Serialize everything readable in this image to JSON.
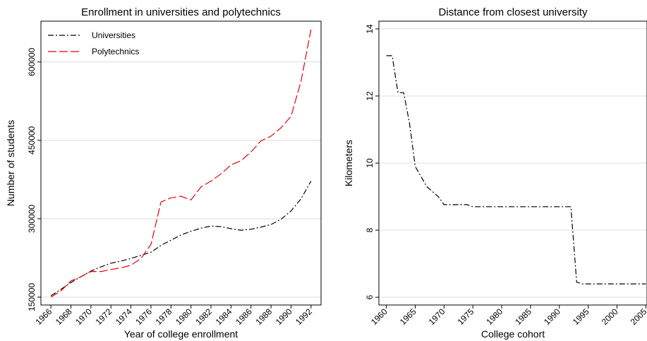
{
  "chart_data": [
    {
      "type": "line",
      "title": "Enrollment in universities and polytechnics",
      "x_label": "Year of college enrollment",
      "y_label": "Number of students",
      "x": [
        1966,
        1967,
        1968,
        1969,
        1970,
        1971,
        1972,
        1973,
        1974,
        1975,
        1976,
        1977,
        1978,
        1979,
        1980,
        1981,
        1982,
        1983,
        1984,
        1985,
        1986,
        1987,
        1988,
        1989,
        1990,
        1991,
        1992
      ],
      "series": [
        {
          "name": "Universities",
          "color": "#000000",
          "dash": "dashdot",
          "values": [
            152700,
            165000,
            178000,
            189000,
            200000,
            208000,
            215000,
            219000,
            224000,
            230000,
            236000,
            249000,
            259000,
            269000,
            276000,
            282000,
            286000,
            285000,
            281000,
            278000,
            280000,
            284000,
            289000,
            299000,
            315000,
            338000,
            372000
          ]
        },
        {
          "name": "Polytechnics",
          "color": "#e8000b",
          "dash": "dashed",
          "values": [
            150000,
            162000,
            181000,
            189000,
            199000,
            199000,
            203000,
            206000,
            211000,
            224000,
            251000,
            332000,
            340000,
            343000,
            336000,
            361000,
            372000,
            386000,
            403000,
            411000,
            428000,
            449000,
            458000,
            474000,
            496000,
            563000,
            662000
          ]
        }
      ],
      "xlim": [
        1965,
        1993
      ],
      "xticks": [
        1966,
        1968,
        1970,
        1972,
        1974,
        1976,
        1978,
        1980,
        1982,
        1984,
        1986,
        1988,
        1990,
        1992
      ],
      "ylim": [
        135000,
        678000
      ],
      "yticks": [
        150000,
        300000,
        450000,
        600000
      ],
      "grid": true,
      "legend": "top-left"
    },
    {
      "type": "line",
      "title": "Distance from closest university",
      "x_label": "College cohort",
      "y_label": "Kilometers",
      "x": [
        1960,
        1961,
        1962,
        1963,
        1964,
        1965,
        1966,
        1967,
        1968,
        1969,
        1970,
        1971,
        1972,
        1973,
        1974,
        1975,
        1976,
        1977,
        1978,
        1979,
        1980,
        1981,
        1982,
        1983,
        1984,
        1985,
        1986,
        1987,
        1988,
        1989,
        1990,
        1991,
        1992,
        1993,
        1994,
        1995,
        1996,
        1997,
        1998,
        1999,
        2000,
        2001,
        2002,
        2003,
        2004,
        2005
      ],
      "series": [
        {
          "color": "#000000",
          "dash": "dashdot",
          "values": [
            13.2,
            13.2,
            12.1,
            12.1,
            11.2,
            9.9,
            9.6,
            9.3,
            9.15,
            9.0,
            8.76,
            8.76,
            8.76,
            8.76,
            8.76,
            8.7,
            8.7,
            8.7,
            8.7,
            8.7,
            8.7,
            8.7,
            8.7,
            8.7,
            8.7,
            8.7,
            8.7,
            8.7,
            8.7,
            8.7,
            8.7,
            8.7,
            8.7,
            6.45,
            6.4,
            6.4,
            6.4,
            6.4,
            6.4,
            6.4,
            6.4,
            6.4,
            6.4,
            6.4,
            6.4,
            6.4
          ]
        }
      ],
      "xlim": [
        1958.7,
        2005.2
      ],
      "xticks": [
        1960,
        1965,
        1970,
        1975,
        1980,
        1985,
        1990,
        1995,
        2000,
        2005
      ],
      "ylim": [
        5.77,
        14.23
      ],
      "yticks": [
        6,
        8,
        10,
        12,
        14
      ],
      "grid": true
    }
  ]
}
